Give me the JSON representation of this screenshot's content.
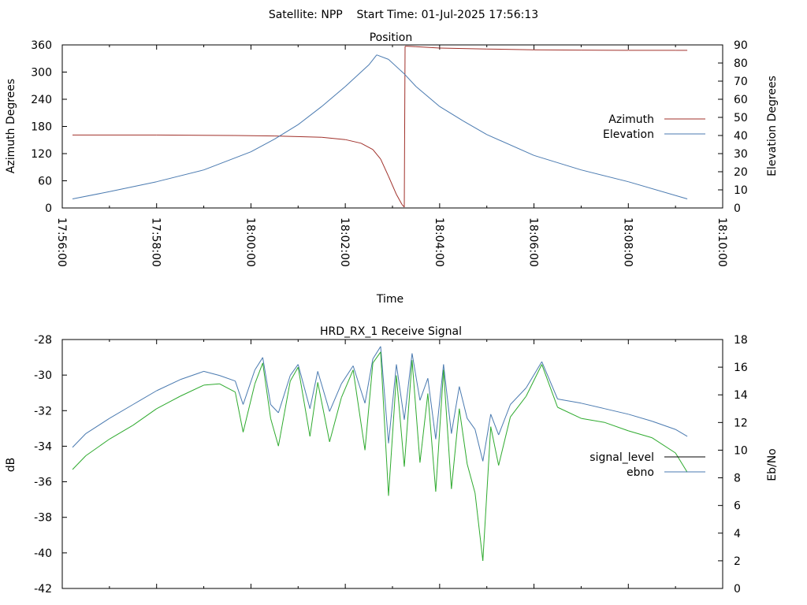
{
  "page_title": "Satellite: NPP    Start Time: 01-Jul-2025 17:56:13",
  "chart_data": [
    {
      "type": "line",
      "title": "Position",
      "xlabel": "Time",
      "ylabel": "Azimuth Degrees",
      "y2label": "Elevation Degrees",
      "x_ticks": [
        "17:56:00",
        "17:58:00",
        "18:00:00",
        "18:02:00",
        "18:04:00",
        "18:06:00",
        "18:08:00",
        "18:10:00"
      ],
      "y_ticks": [
        "0",
        "60",
        "120",
        "180",
        "240",
        "300",
        "360"
      ],
      "y2_ticks": [
        "0",
        "10",
        "20",
        "30",
        "40",
        "50",
        "60",
        "70",
        "80",
        "90"
      ],
      "xlim": [
        "17:56:00",
        "18:10:00"
      ],
      "ylim": [
        0,
        360
      ],
      "y2lim": [
        0,
        90
      ],
      "grid": false,
      "legend": "right",
      "series": [
        {
          "name": "Azimuth",
          "axis": "left",
          "color": "#a0302a",
          "x": [
            "17:56:13",
            "17:58:00",
            "17:59:40",
            "18:00:30",
            "18:01:30",
            "18:02:00",
            "18:02:20",
            "18:02:35",
            "18:02:45",
            "18:02:55",
            "18:03:05",
            "18:03:12",
            "18:03:15",
            "18:03:16",
            "18:03:20",
            "18:03:30",
            "18:04:00",
            "18:05:00",
            "18:06:00",
            "18:07:00",
            "18:08:00",
            "18:09:00",
            "18:09:15"
          ],
          "values": [
            161,
            161,
            160,
            159,
            156,
            151,
            143,
            129,
            108,
            70,
            30,
            8,
            2,
            357,
            357,
            356,
            353,
            351,
            349,
            348.5,
            348,
            348,
            348
          ]
        },
        {
          "name": "Elevation",
          "axis": "right",
          "color": "#4a7ab0",
          "x": [
            "17:56:13",
            "17:57:00",
            "17:58:00",
            "17:59:00",
            "18:00:00",
            "18:00:30",
            "18:01:00",
            "18:01:30",
            "18:02:00",
            "18:02:30",
            "18:02:40",
            "18:02:55",
            "18:03:15",
            "18:03:30",
            "18:04:00",
            "18:04:30",
            "18:05:00",
            "18:06:00",
            "18:07:00",
            "18:08:00",
            "18:09:15"
          ],
          "values": [
            5,
            9,
            14.5,
            21,
            31,
            38,
            46,
            56,
            67,
            79,
            84.5,
            82,
            74,
            67,
            56,
            48,
            40.5,
            29,
            21,
            14.5,
            5
          ]
        }
      ]
    },
    {
      "type": "line",
      "title": "HRD_RX_1 Receive Signal",
      "xlabel": "",
      "ylabel": "dB",
      "y2label": "Eb/No",
      "y_ticks": [
        "-28",
        "-30",
        "-32",
        "-34",
        "-36",
        "-38",
        "-40",
        "-42"
      ],
      "y2_ticks": [
        "0",
        "2",
        "4",
        "6",
        "8",
        "10",
        "12",
        "14",
        "16",
        "18"
      ],
      "xlim": [
        "17:56:00",
        "18:10:00"
      ],
      "ylim": [
        -42,
        -28
      ],
      "y2lim": [
        0,
        18
      ],
      "grid": false,
      "legend": "right",
      "series": [
        {
          "name": "signal_level",
          "axis": "left",
          "color": "#000000",
          "x": [],
          "values": []
        },
        {
          "name": "ebno",
          "axis": "right",
          "color": "#4a7ab0",
          "x": [
            "17:56:13",
            "17:56:30",
            "17:57:00",
            "17:57:30",
            "17:58:00",
            "17:58:30",
            "17:59:00",
            "17:59:20",
            "17:59:40",
            "17:59:50",
            "18:00:05",
            "18:00:15",
            "18:00:25",
            "18:00:35",
            "18:00:50",
            "18:01:00",
            "18:01:15",
            "18:01:25",
            "18:01:40",
            "18:01:55",
            "18:02:10",
            "18:02:25",
            "18:02:35",
            "18:02:45",
            "18:02:55",
            "18:03:05",
            "18:03:15",
            "18:03:25",
            "18:03:35",
            "18:03:45",
            "18:03:55",
            "18:04:05",
            "18:04:15",
            "18:04:25",
            "18:04:35",
            "18:04:45",
            "18:04:55",
            "18:05:05",
            "18:05:15",
            "18:05:30",
            "18:05:50",
            "18:06:10",
            "18:06:30",
            "18:07:00",
            "18:07:30",
            "18:08:00",
            "18:08:30",
            "18:09:00",
            "18:09:15"
          ],
          "values": [
            10.2,
            11.2,
            12.3,
            13.3,
            14.3,
            15.1,
            15.7,
            15.4,
            15.0,
            13.3,
            15.8,
            16.7,
            13.3,
            12.7,
            15.4,
            16.2,
            13.0,
            15.7,
            12.8,
            14.8,
            16.1,
            13.4,
            16.6,
            17.5,
            10.5,
            16.2,
            12.2,
            17.0,
            13.6,
            15.2,
            10.8,
            16.2,
            11.2,
            14.6,
            12.3,
            11.5,
            9.2,
            12.6,
            11.1,
            13.3,
            14.5,
            16.4,
            13.7,
            13.4,
            13.0,
            12.6,
            12.1,
            11.5,
            11.0
          ]
        },
        {
          "name": "",
          "axis": "right",
          "color": "#2eaa2e",
          "x": [
            "17:56:13",
            "17:56:30",
            "17:57:00",
            "17:57:30",
            "17:58:00",
            "17:58:30",
            "17:59:00",
            "17:59:20",
            "17:59:40",
            "17:59:50",
            "18:00:05",
            "18:00:15",
            "18:00:25",
            "18:00:35",
            "18:00:50",
            "18:01:00",
            "18:01:15",
            "18:01:25",
            "18:01:40",
            "18:01:55",
            "18:02:10",
            "18:02:25",
            "18:02:35",
            "18:02:45",
            "18:02:55",
            "18:03:05",
            "18:03:15",
            "18:03:25",
            "18:03:35",
            "18:03:45",
            "18:03:55",
            "18:04:05",
            "18:04:15",
            "18:04:25",
            "18:04:35",
            "18:04:45",
            "18:04:55",
            "18:05:05",
            "18:05:15",
            "18:05:30",
            "18:05:50",
            "18:06:10",
            "18:06:30",
            "18:07:00",
            "18:07:30",
            "18:08:00",
            "18:08:30",
            "18:09:00",
            "18:09:15"
          ],
          "values": [
            8.6,
            9.6,
            10.8,
            11.8,
            13.0,
            13.9,
            14.7,
            14.8,
            14.2,
            11.3,
            14.8,
            16.3,
            12.3,
            10.3,
            15.0,
            16.0,
            11.0,
            14.9,
            10.6,
            13.8,
            15.8,
            10.0,
            16.3,
            17.1,
            6.7,
            15.4,
            8.8,
            16.5,
            9.1,
            14.1,
            7.0,
            15.8,
            7.2,
            13.0,
            9.0,
            6.9,
            2.0,
            11.7,
            8.9,
            12.4,
            13.9,
            16.2,
            13.1,
            12.3,
            12.0,
            11.4,
            10.9,
            9.8,
            8.4
          ]
        }
      ]
    }
  ]
}
